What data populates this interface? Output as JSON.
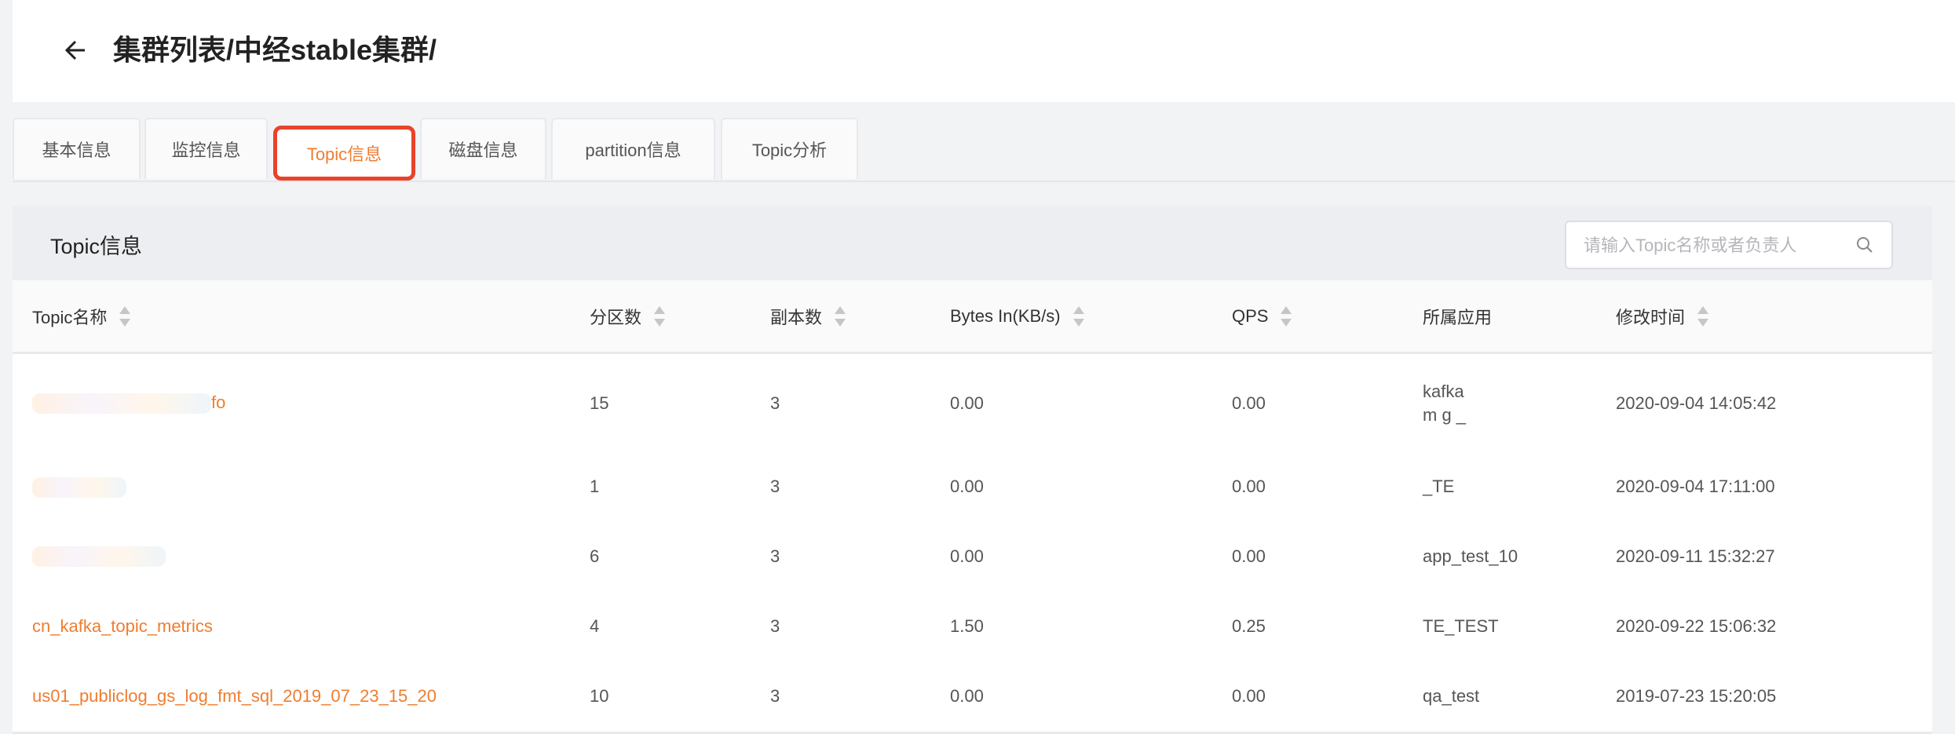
{
  "header": {
    "title": "集群列表/中经stable集群/",
    "back_icon": "arrow-left-icon"
  },
  "tabs": [
    {
      "label": "基本信息",
      "active": false
    },
    {
      "label": "监控信息",
      "active": false
    },
    {
      "label": "Topic信息",
      "active": true
    },
    {
      "label": "磁盘信息",
      "active": false
    },
    {
      "label": "partition信息",
      "active": false
    },
    {
      "label": "Topic分析",
      "active": false
    }
  ],
  "card": {
    "title": "Topic信息",
    "search": {
      "placeholder": "请输入Topic名称或者负责人",
      "value": "",
      "icon": "search-icon"
    }
  },
  "table": {
    "columns": [
      "Topic名称",
      "分区数",
      "副本数",
      "Bytes In(KB/s)",
      "QPS",
      "所属应用",
      "修改时间"
    ],
    "rows": [
      {
        "topic": "fo",
        "partitions": "15",
        "replicas": "3",
        "bytes_in": "0.00",
        "qps": "0.00",
        "app": "kafka",
        "app2": "m g _",
        "modified": "2020-09-04 14:05:42"
      },
      {
        "topic": "",
        "partitions": "1",
        "replicas": "3",
        "bytes_in": "0.00",
        "qps": "0.00",
        "app": "_TE",
        "app2": "",
        "modified": "2020-09-04 17:11:00"
      },
      {
        "topic": "",
        "partitions": "6",
        "replicas": "3",
        "bytes_in": "0.00",
        "qps": "0.00",
        "app": "app_test_10",
        "app2": "",
        "modified": "2020-09-11 15:32:27"
      },
      {
        "topic": "cn_kafka_topic_metrics",
        "partitions": "4",
        "replicas": "3",
        "bytes_in": "1.50",
        "qps": "0.25",
        "app": "TE_TEST",
        "app2": "",
        "modified": "2020-09-22 15:06:32"
      },
      {
        "topic": "us01_publiclog_gs_log_fmt_sql_2019_07_23_15_20",
        "partitions": "10",
        "replicas": "3",
        "bytes_in": "0.00",
        "qps": "0.00",
        "app": "qa_test",
        "app2": "",
        "modified": "2019-07-23 15:20:05"
      }
    ]
  },
  "colors": {
    "accent": "#ef7d2f",
    "active_tab_outline": "#e8432b",
    "page_bg": "#f2f3f5"
  }
}
